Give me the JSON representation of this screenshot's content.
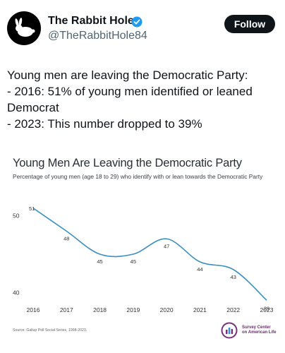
{
  "account": {
    "display_name": "The Rabbit Hole",
    "handle": "@TheRabbitHole84",
    "follow_label": "Follow",
    "verified_color": "#1d9bf0"
  },
  "tweet": {
    "text": "Young men are leaving the Democratic Party:\n- 2016: 51% of young men identified or leaned Democrat\n- 2023: This number dropped to 39%"
  },
  "chart_data": {
    "type": "line",
    "title": "Young Men Are Leaving the Democratic Party",
    "subtitle": "Percentage of young men (age 18 to 29) who identify with or lean towards the Democratic Party",
    "x": [
      "2016",
      "2017",
      "2018",
      "2019",
      "2020",
      "2021",
      "2022",
      "2023"
    ],
    "series": [
      {
        "values": [
          51,
          48,
          45,
          45,
          47,
          44,
          43,
          39
        ],
        "color": "#3a8fc0"
      }
    ],
    "yticks": [
      50,
      40
    ],
    "ylim": [
      37,
      53
    ],
    "grid": false,
    "source": "Source: Gallup Poll Social Series, 1998-2023.",
    "logo_text": "Survey Center\non American Life"
  }
}
